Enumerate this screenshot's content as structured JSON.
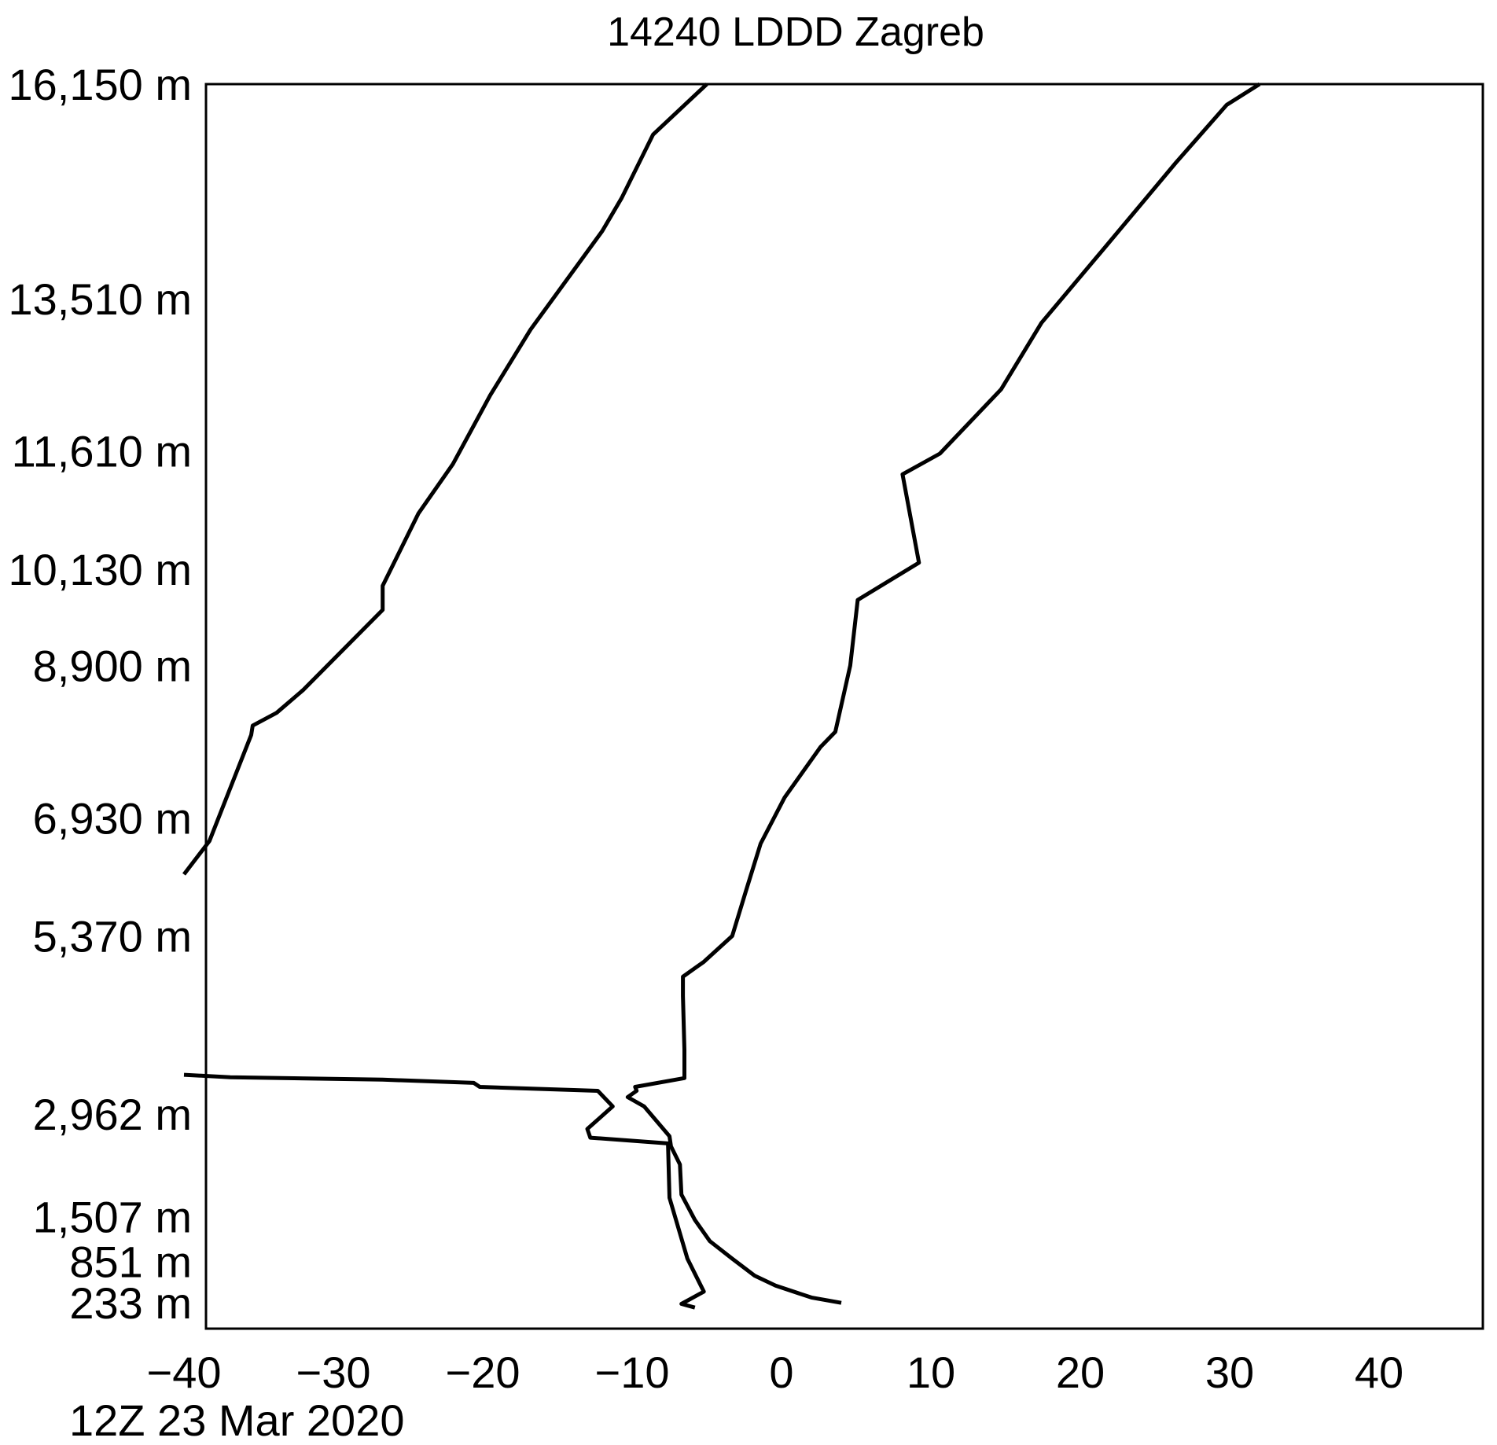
{
  "chart_data": {
    "type": "line",
    "title": "14240 LDDD Zagreb",
    "date_label": "12Z 23 Mar 2020",
    "xlim": [
      -40,
      45
    ],
    "x_ticks": [
      -40,
      -30,
      -20,
      -10,
      0,
      10,
      20,
      30,
      40
    ],
    "x_tick_labels": [
      "−40",
      "−30",
      "−20",
      "−10",
      "0",
      "10",
      "20",
      "30",
      "40"
    ],
    "y_axis_scale": "pressure (log), labelled in height",
    "y_ticks": [
      {
        "label": "16,150 m",
        "pressure": 100
      },
      {
        "label": "13,510 m",
        "pressure": 150
      },
      {
        "label": "11,610 m",
        "pressure": 200
      },
      {
        "label": "10,130 m",
        "pressure": 250
      },
      {
        "label": "8,900 m",
        "pressure": 300
      },
      {
        "label": "6,930 m",
        "pressure": 400
      },
      {
        "label": "5,370 m",
        "pressure": 500
      },
      {
        "label": "2,962 m",
        "pressure": 700
      },
      {
        "label": "1,507 m",
        "pressure": 850
      },
      {
        "label": "851 m",
        "pressure": 925
      },
      {
        "label": "233 m",
        "pressure": 1000
      }
    ],
    "ylim_pressure": [
      1050,
      100
    ],
    "grid": false,
    "series": [
      {
        "x": [
          -5.8,
          -6.7,
          -5.2,
          -6.3,
          -7.5,
          -7.6,
          -12.8,
          -13.0,
          -11.3,
          -12.3,
          -20.2,
          -20.6,
          -26.7,
          -36.9,
          -40.0
        ],
        "pressure": [
          1009,
          1002,
          979,
          920,
          820,
          740,
          732,
          720,
          690,
          670,
          665,
          660,
          656,
          653,
          650
        ]
      },
      {
        "x": [
          4.0,
          2.0,
          -0.4,
          -1.8,
          -3.3,
          -4.8,
          -5.8,
          -6.7,
          -6.8,
          -7.4,
          -7.5,
          -9.2,
          -10.3,
          -9.7,
          -9.8,
          -6.5,
          -6.5,
          -6.6,
          -6.6,
          -5.2,
          -3.3,
          -2.4,
          -1.4,
          0.2,
          2.6,
          3.6,
          4.6,
          5.1,
          9.2,
          8.1,
          10.6,
          14.7,
          17.4,
          21.9,
          26.4,
          29.8,
          32.0
        ],
        "pressure": [
          1000,
          990,
          968,
          950,
          920,
          890,
          855,
          815,
          770,
          744,
          730,
          690,
          678,
          670,
          665,
          654,
          620,
          560,
          540,
          525,
          500,
          460,
          420,
          385,
          350,
          340,
          300,
          265,
          247,
          209,
          201,
          178,
          157,
          135,
          116,
          104,
          100
        ]
      },
      {
        "x": [
          -40.0,
          -38.3,
          -35.5,
          -35.4,
          -33.8,
          -32.0,
          -26.7,
          -26.7,
          -24.3,
          -22.0,
          -19.5,
          -16.8,
          -12.0,
          -10.7,
          -8.6,
          -5.0
        ],
        "pressure": [
          445,
          418,
          342,
          336,
          328,
          314,
          270,
          258,
          225,
          205,
          180,
          159,
          132,
          124,
          110,
          100
        ]
      }
    ]
  }
}
